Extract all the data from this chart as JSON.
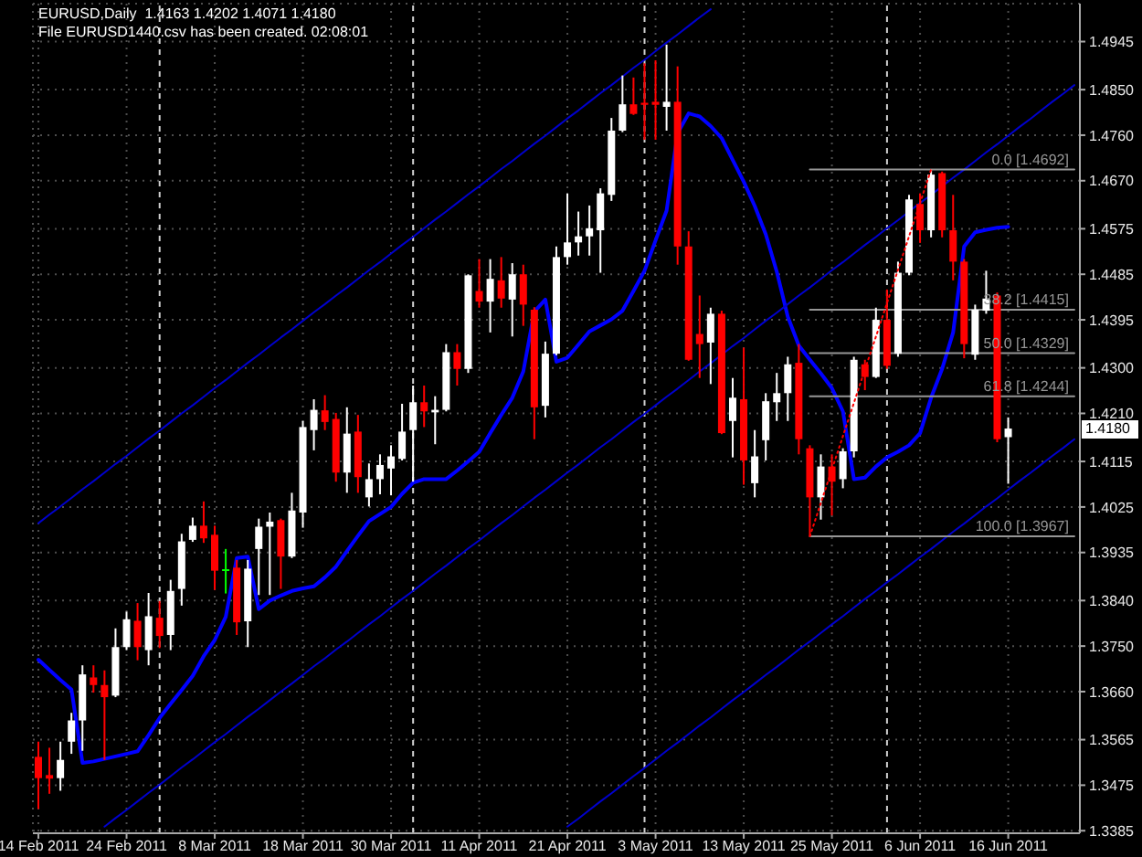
{
  "chart_data": {
    "type": "candlestick",
    "title": "EURUSD,Daily  1.4163 1.4202 1.4071 1.4180",
    "subtitle": "File EURUSD1440.csv has been created. 02:08:01",
    "categories": [
      "14 Feb 2011",
      null,
      null,
      null,
      null,
      null,
      null,
      null,
      "24 Feb 2011",
      null,
      null,
      null,
      null,
      null,
      null,
      null,
      "8 Mar 2011",
      null,
      null,
      null,
      null,
      null,
      null,
      null,
      "18 Mar 2011",
      null,
      null,
      null,
      null,
      null,
      null,
      null,
      "30 Mar 2011",
      null,
      null,
      null,
      null,
      null,
      null,
      null,
      "11 Apr 2011",
      null,
      null,
      null,
      null,
      null,
      null,
      null,
      "21 Apr 2011",
      null,
      null,
      null,
      null,
      null,
      null,
      null,
      "3 May 2011",
      null,
      null,
      null,
      null,
      null,
      null,
      null,
      "13 May 2011",
      null,
      null,
      null,
      null,
      null,
      null,
      null,
      "25 May 2011",
      null,
      null,
      null,
      null,
      null,
      null,
      null,
      "6 Jun 2011",
      null,
      null,
      null,
      null,
      null,
      null,
      null,
      "16 Jun 2011",
      null,
      null,
      null,
      null,
      null,
      null
    ],
    "ohlc": [
      [
        1.3531,
        1.3561,
        1.3428,
        1.3489
      ],
      [
        1.3495,
        1.3549,
        1.3458,
        1.3488
      ],
      [
        1.3489,
        1.3561,
        1.3464,
        1.3525
      ],
      [
        1.3561,
        1.3618,
        1.3537,
        1.3603
      ],
      [
        1.3603,
        1.3712,
        1.3543,
        1.3694
      ],
      [
        1.3688,
        1.3712,
        1.3658,
        1.3673
      ],
      [
        1.3673,
        1.3702,
        1.3525,
        1.3649
      ],
      [
        1.3652,
        1.3785,
        1.3649,
        1.3748
      ],
      [
        1.3748,
        1.3818,
        1.3742,
        1.3803
      ],
      [
        1.38,
        1.3835,
        1.3722,
        1.3748
      ],
      [
        1.3742,
        1.3855,
        1.3712,
        1.3809
      ],
      [
        1.3806,
        1.3839,
        1.3746,
        1.377
      ],
      [
        1.3772,
        1.3881,
        1.3742,
        1.3859
      ],
      [
        1.3863,
        1.3972,
        1.383,
        1.3957
      ],
      [
        1.396,
        1.4004,
        1.3956,
        1.3988
      ],
      [
        1.3988,
        1.4036,
        1.3954,
        1.3963
      ],
      [
        1.397,
        1.3988,
        1.3861,
        1.3899
      ],
      [
        1.3902,
        1.3942,
        1.3854,
        1.3902
      ],
      [
        1.3905,
        1.392,
        1.3772,
        1.3797
      ],
      [
        1.3799,
        1.392,
        1.3748,
        1.3903
      ],
      [
        1.3942,
        1.4002,
        1.3851,
        1.3986
      ],
      [
        1.3986,
        1.4014,
        1.3851,
        1.3996
      ],
      [
        1.3999,
        1.4002,
        1.3863,
        1.3927
      ],
      [
        1.3927,
        1.4053,
        1.3924,
        1.4018
      ],
      [
        1.4014,
        1.4195,
        1.3984,
        1.4183
      ],
      [
        1.4177,
        1.4238,
        1.4137,
        1.4217
      ],
      [
        1.4216,
        1.4246,
        1.4177,
        1.4193
      ],
      [
        1.4199,
        1.4211,
        1.4075,
        1.4093
      ],
      [
        1.4093,
        1.4222,
        1.4053,
        1.417
      ],
      [
        1.4174,
        1.4207,
        1.4053,
        1.4084
      ],
      [
        1.4044,
        1.4111,
        1.4026,
        1.408
      ],
      [
        1.408,
        1.4129,
        1.405,
        1.4108
      ],
      [
        1.4101,
        1.4147,
        1.4048,
        1.4125
      ],
      [
        1.412,
        1.4229,
        1.4117,
        1.4174
      ],
      [
        1.4177,
        1.4265,
        1.4075,
        1.4232
      ],
      [
        1.4232,
        1.4265,
        1.4183,
        1.4214
      ],
      [
        1.4212,
        1.4244,
        1.4149,
        1.4217
      ],
      [
        1.4217,
        1.4347,
        1.4214,
        1.4331
      ],
      [
        1.4331,
        1.4347,
        1.4265,
        1.4298
      ],
      [
        1.4298,
        1.4485,
        1.429,
        1.4483
      ],
      [
        1.4452,
        1.4515,
        1.4419,
        1.4431
      ],
      [
        1.4431,
        1.4515,
        1.437,
        1.4476
      ],
      [
        1.4473,
        1.4519,
        1.4419,
        1.4437
      ],
      [
        1.4435,
        1.4507,
        1.4362,
        1.4485
      ],
      [
        1.4485,
        1.4504,
        1.4383,
        1.4425
      ],
      [
        1.4415,
        1.442,
        1.4159,
        1.4222
      ],
      [
        1.4225,
        1.4352,
        1.4202,
        1.4328
      ],
      [
        1.4328,
        1.454,
        1.4325,
        1.4519
      ],
      [
        1.4519,
        1.4645,
        1.4504,
        1.4548
      ],
      [
        1.4548,
        1.4609,
        1.4522,
        1.456
      ],
      [
        1.456,
        1.4621,
        1.4522,
        1.4576
      ],
      [
        1.4572,
        1.4655,
        1.4488,
        1.4645
      ],
      [
        1.4642,
        1.4794,
        1.463,
        1.4769
      ],
      [
        1.4769,
        1.4878,
        1.4766,
        1.4821
      ],
      [
        1.4821,
        1.4874,
        1.48,
        1.4802
      ],
      [
        1.4824,
        1.4902,
        1.4751,
        1.482
      ],
      [
        1.4826,
        1.4908,
        1.4751,
        1.482
      ],
      [
        1.4816,
        1.4939,
        1.4769,
        1.4826
      ],
      [
        1.4826,
        1.4896,
        1.4504,
        1.454
      ],
      [
        1.454,
        1.457,
        1.4314,
        1.4316
      ],
      [
        1.4367,
        1.4443,
        1.428,
        1.4347
      ],
      [
        1.435,
        1.4419,
        1.4268,
        1.4407
      ],
      [
        1.4407,
        1.4413,
        1.4169,
        1.4171
      ],
      [
        1.4195,
        1.428,
        1.4123,
        1.4241
      ],
      [
        1.4238,
        1.434,
        1.4069,
        1.4117
      ],
      [
        1.4072,
        1.4177,
        1.4044,
        1.4125
      ],
      [
        1.4157,
        1.425,
        1.4117,
        1.4234
      ],
      [
        1.4232,
        1.429,
        1.4195,
        1.425
      ],
      [
        1.425,
        1.4322,
        1.4195,
        1.4307
      ],
      [
        1.431,
        1.4347,
        1.4129,
        1.4159
      ],
      [
        1.4141,
        1.4147,
        1.3967,
        1.4044
      ],
      [
        1.4044,
        1.4129,
        1.4,
        1.4105
      ],
      [
        1.4105,
        1.4129,
        1.4008,
        1.4075
      ],
      [
        1.408,
        1.4141,
        1.4062,
        1.4135
      ],
      [
        1.4135,
        1.4322,
        1.4123,
        1.4316
      ],
      [
        1.4307,
        1.4316,
        1.4256,
        1.4282
      ],
      [
        1.4282,
        1.4419,
        1.428,
        1.4395
      ],
      [
        1.4395,
        1.4455,
        1.4298,
        1.4304
      ],
      [
        1.4328,
        1.451,
        1.4322,
        1.4488
      ],
      [
        1.4488,
        1.4642,
        1.4483,
        1.4633
      ],
      [
        1.4624,
        1.4645,
        1.4547,
        1.4572
      ],
      [
        1.4572,
        1.4692,
        1.4558,
        1.4682
      ],
      [
        1.4685,
        1.4688,
        1.4558,
        1.4572
      ],
      [
        1.4572,
        1.4642,
        1.4473,
        1.451
      ],
      [
        1.451,
        1.4515,
        1.4319,
        1.4347
      ],
      [
        1.4326,
        1.4425,
        1.4316,
        1.4415
      ],
      [
        1.4413,
        1.4492,
        1.4407,
        1.4437
      ],
      [
        1.4443,
        1.4449,
        1.4153,
        1.4159
      ],
      [
        1.4163,
        1.4202,
        1.4071,
        1.418
      ],
      null,
      null,
      null,
      null,
      null,
      null
    ],
    "colors": [
      "#ff0000",
      "#ff0000",
      "#ffffff",
      "#ffffff",
      "#ffffff",
      "#ff0000",
      "#ff0000",
      "#ffffff",
      "#ffffff",
      "#ff0000",
      "#ffffff",
      "#ff0000",
      "#ffffff",
      "#ffffff",
      "#ffffff",
      "#ff0000",
      "#ff0000",
      "#00ff00",
      "#ff0000",
      "#ffffff",
      "#ffffff",
      "#ffffff",
      "#ff0000",
      "#ffffff",
      "#ffffff",
      "#ffffff",
      "#ff0000",
      "#ff0000",
      "#ffffff",
      "#ff0000",
      "#ffffff",
      "#ffffff",
      "#ffffff",
      "#ffffff",
      "#ffffff",
      "#ff0000",
      "#ffffff",
      "#ffffff",
      "#ff0000",
      "#ffffff",
      "#ff0000",
      "#ffffff",
      "#ff0000",
      "#ffffff",
      "#ff0000",
      "#ff0000",
      "#ffffff",
      "#ffffff",
      "#ffffff",
      "#ffffff",
      "#ffffff",
      "#ffffff",
      "#ffffff",
      "#ffffff",
      "#ff0000",
      "#ff0000",
      "#ff0000",
      "#ffffff",
      "#ff0000",
      "#ff0000",
      "#ff0000",
      "#ffffff",
      "#ff0000",
      "#ffffff",
      "#ff0000",
      "#ffffff",
      "#ffffff",
      "#ffffff",
      "#ffffff",
      "#ff0000",
      "#ff0000",
      "#ffffff",
      "#ff0000",
      "#ffffff",
      "#ffffff",
      "#ff0000",
      "#ffffff",
      "#ff0000",
      "#ffffff",
      "#ffffff",
      "#ff0000",
      "#ffffff",
      "#ff0000",
      "#ff0000",
      "#ff0000",
      "#ffffff",
      "#ffffff",
      "#ff0000",
      "#ffffff",
      null,
      null,
      null,
      null,
      null,
      null
    ],
    "series": [
      {
        "type": "line",
        "color": "#0000ff",
        "values": [
          1.3723,
          1.3703,
          1.3683,
          1.3664,
          1.3519,
          1.3522,
          1.3527,
          1.3532,
          1.3537,
          1.3542,
          1.3574,
          1.3608,
          1.3636,
          1.3663,
          1.3691,
          1.373,
          1.3762,
          1.3808,
          1.3924,
          1.3927,
          1.3823,
          1.384,
          1.385,
          1.3859,
          1.3864,
          1.3868,
          1.3886,
          1.3907,
          1.3938,
          1.3968,
          1.3997,
          1.4011,
          1.4025,
          1.4051,
          1.4073,
          1.408,
          1.408,
          1.408,
          1.4097,
          1.4115,
          1.4134,
          1.4171,
          1.4207,
          1.4241,
          1.4293,
          1.4411,
          1.4435,
          1.4312,
          1.432,
          1.4346,
          1.4372,
          1.4384,
          1.4396,
          1.4413,
          1.4452,
          1.4492,
          1.4552,
          1.4611,
          1.4764,
          1.4803,
          1.4797,
          1.4778,
          1.4754,
          1.4711,
          1.4668,
          1.462,
          1.4564,
          1.449,
          1.4401,
          1.4344,
          1.4316,
          1.4289,
          1.426,
          1.4214,
          1.408,
          1.4083,
          1.4105,
          1.4123,
          1.4134,
          1.4147,
          1.4171,
          1.4241,
          1.4298,
          1.437,
          1.454,
          1.4568,
          1.4573,
          1.4577,
          1.4579,
          null,
          null,
          null,
          null,
          null,
          null
        ]
      },
      {
        "type": "line",
        "color": "#0000cd",
        "values": [
          1.3993,
          1.401,
          1.4026,
          1.4043,
          1.406,
          1.4076,
          1.4093,
          1.411,
          1.4126,
          1.4143,
          1.416,
          1.4176,
          1.4193,
          1.421,
          1.4226,
          1.4243,
          1.426,
          1.4276,
          1.4293,
          1.431,
          1.4326,
          1.4343,
          1.436,
          1.4376,
          1.4393,
          1.441,
          1.4426,
          1.4443,
          1.4459,
          1.4476,
          1.4493,
          1.4509,
          1.4526,
          1.4543,
          1.4559,
          1.4576,
          1.4593,
          1.4609,
          1.4626,
          1.4643,
          1.4659,
          1.4676,
          1.4693,
          1.4709,
          1.4726,
          1.4743,
          1.4759,
          1.4776,
          1.4793,
          1.4809,
          1.4826,
          1.4843,
          1.4859,
          1.4876,
          1.4893,
          1.4909,
          1.4926,
          1.4943,
          1.4959,
          1.4976,
          1.4993,
          1.5009,
          null,
          null,
          null,
          null,
          null,
          null,
          null,
          null,
          null,
          null,
          null,
          null,
          null,
          null,
          null,
          null,
          null,
          null,
          null,
          null,
          null,
          null,
          null,
          null,
          null,
          null,
          null,
          null,
          null,
          null,
          null,
          null,
          null
        ]
      },
      {
        "type": "line",
        "color": "#0000cd",
        "values": [
          null,
          null,
          null,
          null,
          null,
          null,
          1.3393,
          1.341,
          1.3426,
          1.3443,
          1.346,
          1.3476,
          1.3493,
          1.351,
          1.3526,
          1.3543,
          1.356,
          1.3576,
          1.3593,
          1.361,
          1.3626,
          1.3643,
          1.366,
          1.3676,
          1.3693,
          1.371,
          1.3726,
          1.3743,
          1.3759,
          1.3776,
          1.3793,
          1.3809,
          1.3826,
          1.3843,
          1.3859,
          1.3876,
          1.3893,
          1.3909,
          1.3926,
          1.3943,
          1.3959,
          1.3976,
          1.3993,
          1.4009,
          1.4026,
          1.4043,
          1.4059,
          1.4076,
          1.4093,
          1.4109,
          1.4126,
          1.4143,
          1.4159,
          1.4176,
          1.4193,
          1.4209,
          1.4226,
          1.4243,
          1.4259,
          1.4276,
          1.4293,
          1.4309,
          1.4326,
          1.4343,
          1.4359,
          1.4376,
          1.4393,
          1.4409,
          1.4426,
          1.4443,
          1.4459,
          1.4476,
          1.4493,
          1.4509,
          1.4526,
          1.4543,
          1.4559,
          1.4576,
          1.4592,
          1.4609,
          1.4626,
          1.4642,
          1.4659,
          1.4676,
          1.4692,
          1.4709,
          1.4726,
          1.4742,
          1.4759,
          1.4776,
          1.4792,
          1.4809,
          1.4826,
          1.4842,
          1.4859
        ]
      },
      {
        "type": "line",
        "color": "#0000cd",
        "values": [
          null,
          null,
          null,
          null,
          null,
          null,
          null,
          null,
          null,
          null,
          null,
          null,
          null,
          null,
          null,
          null,
          null,
          null,
          null,
          null,
          null,
          null,
          null,
          null,
          null,
          null,
          null,
          null,
          null,
          null,
          null,
          null,
          null,
          null,
          null,
          null,
          null,
          null,
          null,
          null,
          null,
          null,
          null,
          null,
          null,
          null,
          null,
          null,
          1.3393,
          1.3409,
          1.3426,
          1.3443,
          1.3459,
          1.3476,
          1.3493,
          1.3509,
          1.3526,
          1.3543,
          1.3559,
          1.3576,
          1.3593,
          1.3609,
          1.3626,
          1.3643,
          1.3659,
          1.3676,
          1.3693,
          1.3709,
          1.3726,
          1.3743,
          1.3759,
          1.3776,
          1.3793,
          1.3809,
          1.3826,
          1.3843,
          1.3859,
          1.3876,
          1.3892,
          1.3909,
          1.3926,
          1.3942,
          1.3959,
          1.3976,
          1.3992,
          1.4009,
          1.4026,
          1.4042,
          1.4059,
          1.4076,
          1.4092,
          1.4109,
          1.4126,
          1.4142,
          1.4159
        ]
      },
      {
        "type": "line",
        "color": "#ff0000",
        "line_style": "dotted",
        "values": [
          null,
          null,
          null,
          null,
          null,
          null,
          null,
          null,
          null,
          null,
          null,
          null,
          null,
          null,
          null,
          null,
          null,
          null,
          null,
          null,
          null,
          null,
          null,
          null,
          null,
          null,
          null,
          null,
          null,
          null,
          null,
          null,
          null,
          null,
          null,
          null,
          null,
          null,
          null,
          null,
          null,
          null,
          null,
          null,
          null,
          null,
          null,
          null,
          null,
          null,
          null,
          null,
          null,
          null,
          null,
          null,
          null,
          null,
          null,
          null,
          null,
          null,
          null,
          null,
          null,
          null,
          null,
          null,
          null,
          null,
          1.3967,
          1.4033,
          1.4099,
          1.4165,
          1.4231,
          1.4297,
          1.4362,
          1.4428,
          1.4494,
          1.456,
          1.4626,
          1.4692,
          null,
          null,
          null,
          null,
          null,
          null,
          null,
          null,
          null,
          null,
          null,
          null,
          null
        ]
      },
      {
        "type": "line",
        "name": "0.0 [1.4692]",
        "color": "#969696",
        "values": [
          null,
          null,
          null,
          null,
          null,
          null,
          null,
          null,
          null,
          null,
          null,
          null,
          null,
          null,
          null,
          null,
          null,
          null,
          null,
          null,
          null,
          null,
          null,
          null,
          null,
          null,
          null,
          null,
          null,
          null,
          null,
          null,
          null,
          null,
          null,
          null,
          null,
          null,
          null,
          null,
          null,
          null,
          null,
          null,
          null,
          null,
          null,
          null,
          null,
          null,
          null,
          null,
          null,
          null,
          null,
          null,
          null,
          null,
          null,
          null,
          null,
          null,
          null,
          null,
          null,
          null,
          null,
          null,
          null,
          null,
          1.4692,
          1.4692,
          1.4692,
          1.4692,
          1.4692,
          1.4692,
          1.4692,
          1.4692,
          1.4692,
          1.4692,
          1.4692,
          1.4692,
          1.4692,
          1.4692,
          1.4692,
          1.4692,
          1.4692,
          1.4692,
          1.4692,
          1.4692,
          1.4692,
          1.4692,
          1.4692,
          1.4692,
          1.4692
        ]
      },
      {
        "type": "line",
        "name": "38.2 [1.4415]",
        "color": "#969696",
        "values": [
          null,
          null,
          null,
          null,
          null,
          null,
          null,
          null,
          null,
          null,
          null,
          null,
          null,
          null,
          null,
          null,
          null,
          null,
          null,
          null,
          null,
          null,
          null,
          null,
          null,
          null,
          null,
          null,
          null,
          null,
          null,
          null,
          null,
          null,
          null,
          null,
          null,
          null,
          null,
          null,
          null,
          null,
          null,
          null,
          null,
          null,
          null,
          null,
          null,
          null,
          null,
          null,
          null,
          null,
          null,
          null,
          null,
          null,
          null,
          null,
          null,
          null,
          null,
          null,
          null,
          null,
          null,
          null,
          null,
          null,
          1.4415,
          1.4415,
          1.4415,
          1.4415,
          1.4415,
          1.4415,
          1.4415,
          1.4415,
          1.4415,
          1.4415,
          1.4415,
          1.4415,
          1.4415,
          1.4415,
          1.4415,
          1.4415,
          1.4415,
          1.4415,
          1.4415,
          1.4415,
          1.4415,
          1.4415,
          1.4415,
          1.4415,
          1.4415
        ]
      },
      {
        "type": "line",
        "name": "50.0 [1.4329]",
        "color": "#969696",
        "values": [
          null,
          null,
          null,
          null,
          null,
          null,
          null,
          null,
          null,
          null,
          null,
          null,
          null,
          null,
          null,
          null,
          null,
          null,
          null,
          null,
          null,
          null,
          null,
          null,
          null,
          null,
          null,
          null,
          null,
          null,
          null,
          null,
          null,
          null,
          null,
          null,
          null,
          null,
          null,
          null,
          null,
          null,
          null,
          null,
          null,
          null,
          null,
          null,
          null,
          null,
          null,
          null,
          null,
          null,
          null,
          null,
          null,
          null,
          null,
          null,
          null,
          null,
          null,
          null,
          null,
          null,
          null,
          null,
          null,
          null,
          1.4329,
          1.4329,
          1.4329,
          1.4329,
          1.4329,
          1.4329,
          1.4329,
          1.4329,
          1.4329,
          1.4329,
          1.4329,
          1.4329,
          1.4329,
          1.4329,
          1.4329,
          1.4329,
          1.4329,
          1.4329,
          1.4329,
          1.4329,
          1.4329,
          1.4329,
          1.4329,
          1.4329,
          1.4329
        ]
      },
      {
        "type": "line",
        "name": "61.8 [1.4244]",
        "color": "#969696",
        "values": [
          null,
          null,
          null,
          null,
          null,
          null,
          null,
          null,
          null,
          null,
          null,
          null,
          null,
          null,
          null,
          null,
          null,
          null,
          null,
          null,
          null,
          null,
          null,
          null,
          null,
          null,
          null,
          null,
          null,
          null,
          null,
          null,
          null,
          null,
          null,
          null,
          null,
          null,
          null,
          null,
          null,
          null,
          null,
          null,
          null,
          null,
          null,
          null,
          null,
          null,
          null,
          null,
          null,
          null,
          null,
          null,
          null,
          null,
          null,
          null,
          null,
          null,
          null,
          null,
          null,
          null,
          null,
          null,
          null,
          null,
          1.4244,
          1.4244,
          1.4244,
          1.4244,
          1.4244,
          1.4244,
          1.4244,
          1.4244,
          1.4244,
          1.4244,
          1.4244,
          1.4244,
          1.4244,
          1.4244,
          1.4244,
          1.4244,
          1.4244,
          1.4244,
          1.4244,
          1.4244,
          1.4244,
          1.4244,
          1.4244,
          1.4244,
          1.4244
        ]
      },
      {
        "type": "line",
        "name": "100.0 [1.3967]",
        "color": "#969696",
        "values": [
          null,
          null,
          null,
          null,
          null,
          null,
          null,
          null,
          null,
          null,
          null,
          null,
          null,
          null,
          null,
          null,
          null,
          null,
          null,
          null,
          null,
          null,
          null,
          null,
          null,
          null,
          null,
          null,
          null,
          null,
          null,
          null,
          null,
          null,
          null,
          null,
          null,
          null,
          null,
          null,
          null,
          null,
          null,
          null,
          null,
          null,
          null,
          null,
          null,
          null,
          null,
          null,
          null,
          null,
          null,
          null,
          null,
          null,
          null,
          null,
          null,
          null,
          null,
          null,
          null,
          null,
          null,
          null,
          null,
          null,
          1.3967,
          1.3967,
          1.3967,
          1.3967,
          1.3967,
          1.3967,
          1.3967,
          1.3967,
          1.3967,
          1.3967,
          1.3967,
          1.3967,
          1.3967,
          1.3967,
          1.3967,
          1.3967,
          1.3967,
          1.3967,
          1.3967,
          1.3967,
          1.3967,
          1.3967,
          1.3967,
          1.3967,
          1.3967
        ]
      }
    ],
    "ylim": [
      1.338,
      1.502
    ],
    "yticks": [
      1.4945,
      {
        "value": 1.485,
        "label": "1.4850"
      },
      {
        "value": 1.476,
        "label": "1.4760"
      },
      {
        "value": 1.467,
        "label": "1.4670"
      },
      1.4575,
      1.4485,
      1.4395,
      {
        "value": 1.43,
        "label": "1.4300"
      },
      {
        "value": 1.421,
        "label": "1.4210"
      },
      1.4115,
      1.4025,
      1.3935,
      {
        "value": 1.384,
        "label": "1.3840"
      },
      {
        "value": 1.375,
        "label": "1.3750"
      },
      {
        "value": 1.366,
        "label": "1.3660"
      },
      1.3565,
      1.3475,
      1.3385
    ],
    "grid": true,
    "annotations": [
      {
        "text": "1.4180",
        "y": 1.418
      }
    ]
  }
}
